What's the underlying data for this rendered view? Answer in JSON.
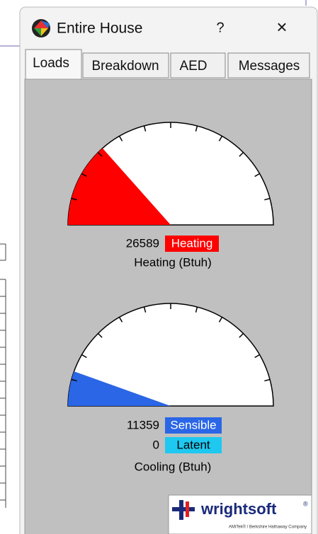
{
  "window": {
    "title": "Entire House",
    "help": "?",
    "close": "×"
  },
  "tabs": [
    "Loads",
    "Breakdown",
    "AED",
    "Messages"
  ],
  "heating": {
    "value": 26589,
    "tag": "Heating",
    "caption": "Heating (Btuh)"
  },
  "cooling": {
    "sensible_value": 11359,
    "sensible_tag": "Sensible",
    "latent_value": 0,
    "latent_tag": "Latent",
    "caption": "Cooling (Btuh)"
  },
  "logo": {
    "name": "wrightsoft",
    "registered": "®",
    "tagline": "AMiTek® / Berkshire Hathaway Company"
  }
}
